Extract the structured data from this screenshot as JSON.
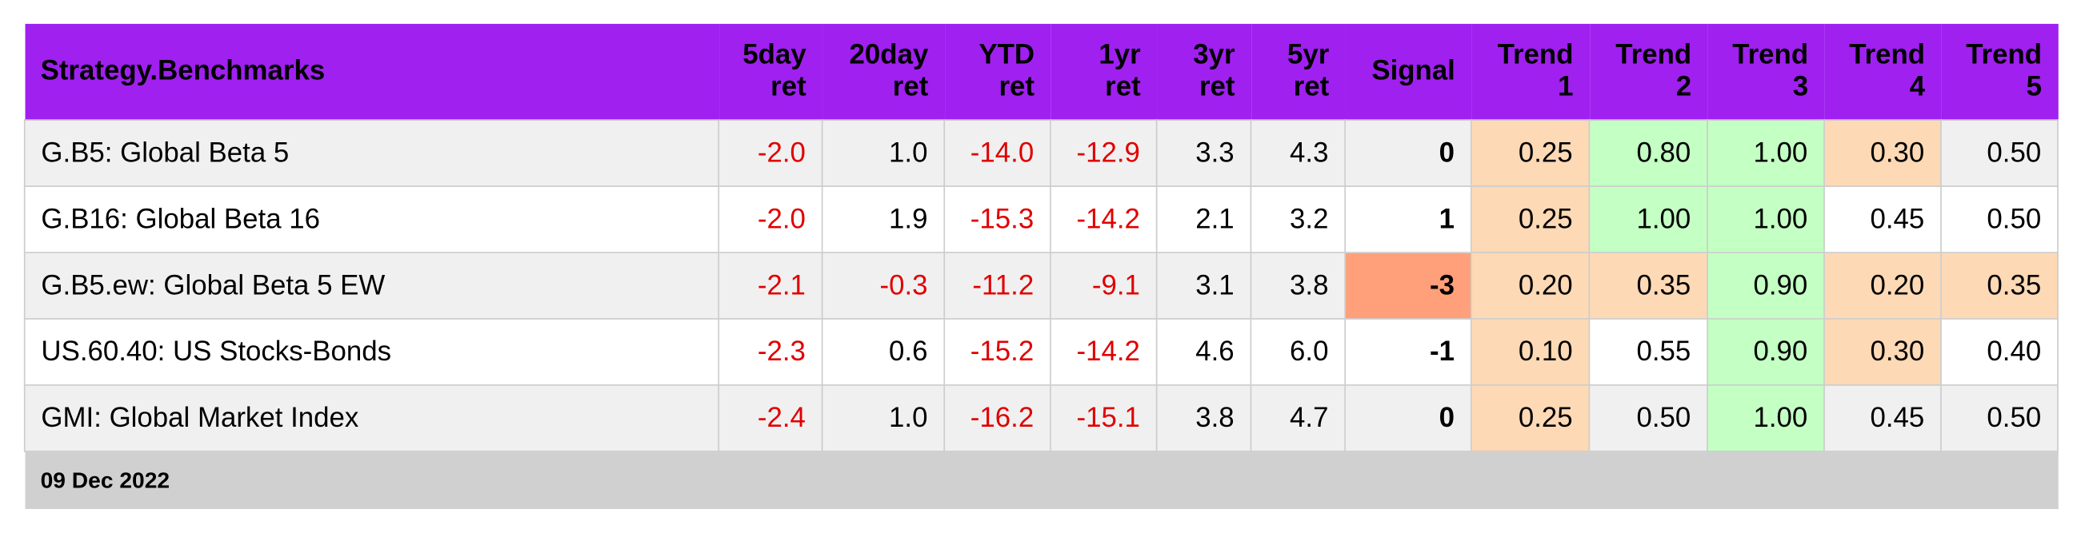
{
  "table": {
    "header": [
      "Strategy.Benchmarks",
      "5day\nret",
      "20day\nret",
      "YTD\nret",
      "1yr\nret",
      "3yr\nret",
      "5yr\nret",
      "Signal",
      "Trend\n1",
      "Trend\n2",
      "Trend\n3",
      "Trend\n4",
      "Trend\n5"
    ],
    "rows": [
      [
        "G.B5: Global Beta 5",
        "-2.0",
        "1.0",
        "-14.0",
        "-12.9",
        "3.3",
        "4.3",
        "0",
        "0.25",
        "0.80",
        "1.00",
        "0.30",
        "0.50"
      ],
      [
        "G.B16: Global Beta 16",
        "-2.0",
        "1.9",
        "-15.3",
        "-14.2",
        "2.1",
        "3.2",
        "1",
        "0.25",
        "1.00",
        "1.00",
        "0.45",
        "0.50"
      ],
      [
        "G.B5.ew: Global Beta 5 EW",
        "-2.1",
        "-0.3",
        "-11.2",
        "-9.1",
        "3.1",
        "3.8",
        "-3",
        "0.20",
        "0.35",
        "0.90",
        "0.20",
        "0.35"
      ],
      [
        "US.60.40: US Stocks-Bonds",
        "-2.3",
        "0.6",
        "-15.2",
        "-14.2",
        "4.6",
        "6.0",
        "-1",
        "0.10",
        "0.55",
        "0.90",
        "0.30",
        "0.40"
      ],
      [
        "GMI: Global Market Index",
        "-2.4",
        "1.0",
        "-16.2",
        "-15.1",
        "3.8",
        "4.7",
        "0",
        "0.25",
        "0.50",
        "1.00",
        "0.45",
        "0.50"
      ]
    ],
    "footer": "09 Dec 2022"
  }
}
